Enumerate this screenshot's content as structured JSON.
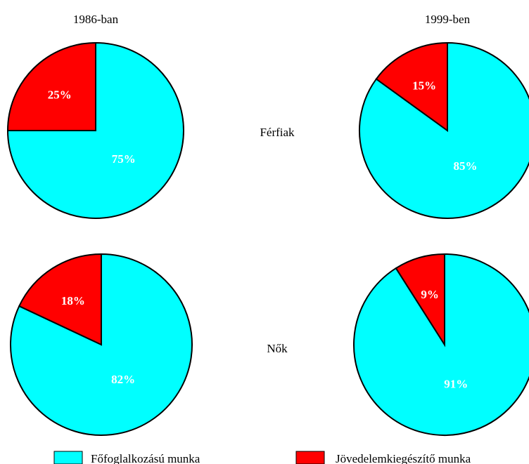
{
  "columns": [
    "1986-ban",
    "1999-ben"
  ],
  "rows": [
    "Férfiak",
    "Nők"
  ],
  "legend": [
    {
      "label": "Főfoglalkozású munka",
      "color": "#00ffff"
    },
    {
      "label": "Jövedelemkiegészítő munka",
      "color": "#ff0000"
    }
  ],
  "chart_data": [
    {
      "type": "pie",
      "group": "Férfiak",
      "year": "1986-ban",
      "slices": [
        {
          "name": "Főfoglalkozású munka",
          "value": 75,
          "label": "75%"
        },
        {
          "name": "Jövedelemkiegészítő munka",
          "value": 25,
          "label": "25%"
        }
      ]
    },
    {
      "type": "pie",
      "group": "Férfiak",
      "year": "1999-ben",
      "slices": [
        {
          "name": "Főfoglalkozású munka",
          "value": 85,
          "label": "85%"
        },
        {
          "name": "Jövedelemkiegészítő munka",
          "value": 15,
          "label": "15%"
        }
      ]
    },
    {
      "type": "pie",
      "group": "Nők",
      "year": "1986-ban",
      "slices": [
        {
          "name": "Főfoglalkozású munka",
          "value": 82,
          "label": "82%"
        },
        {
          "name": "Jövedelemkiegészítő munka",
          "value": 18,
          "label": "18%"
        }
      ]
    },
    {
      "type": "pie",
      "group": "Nők",
      "year": "1999-ben",
      "slices": [
        {
          "name": "Főfoglalkozású munka",
          "value": 91,
          "label": "91%"
        },
        {
          "name": "Jövedelemkiegészítő munka",
          "value": 9,
          "label": "9%"
        }
      ]
    }
  ]
}
